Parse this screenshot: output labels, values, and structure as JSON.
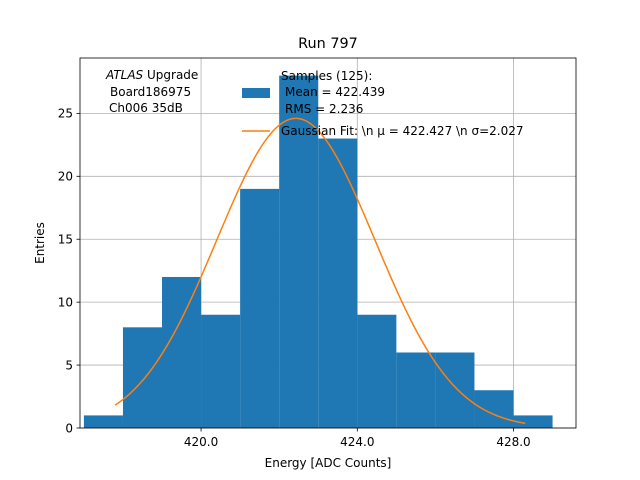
{
  "chart_data": {
    "type": "bar",
    "title": "Run 797",
    "xlabel": "Energy [ADC Counts]",
    "ylabel": "Entries",
    "xlim": [
      416.9,
      429.6
    ],
    "ylim": [
      0,
      29.4
    ],
    "x_ticks": [
      420,
      424,
      428
    ],
    "x_tick_labels": [
      "420.0",
      "424.0",
      "428.0"
    ],
    "y_ticks": [
      0,
      5,
      10,
      15,
      20,
      25
    ],
    "y_tick_labels": [
      "0",
      "5",
      "10",
      "15",
      "20",
      "25"
    ],
    "grid": true,
    "bin_edges": [
      417,
      418,
      419,
      420,
      421,
      422,
      423,
      424,
      425,
      426,
      427,
      428,
      429
    ],
    "counts": [
      1,
      8,
      12,
      9,
      19,
      28,
      23,
      9,
      6,
      6,
      3,
      1
    ],
    "fit": {
      "mu": 422.427,
      "sigma": 2.027,
      "total": 125,
      "bin_width": 1,
      "x_range": [
        417.8,
        428.3
      ]
    },
    "annotation": {
      "experiment": "ATLAS",
      "line1_suffix": " Upgrade",
      "line2": "Board186975",
      "line3": "Ch006 35dB"
    },
    "legend": {
      "placement": "top-right",
      "hist_label": [
        "Samples (125):",
        "Mean = 422.439",
        "RMS = 2.236"
      ],
      "fit_label": "Gaussian Fit: \\n μ = 422.427 \\n σ=2.027"
    },
    "colors": {
      "hist": "#1f77b4",
      "fit": "#ff7f0e",
      "grid": "#b0b0b0",
      "axis": "#000000"
    }
  }
}
